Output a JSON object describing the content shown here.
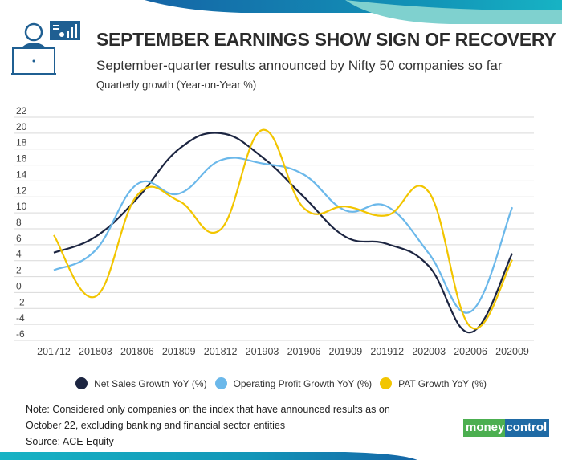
{
  "header": {
    "title": "SEPTEMBER EARNINGS SHOW SIGN OF RECOVERY",
    "subtitle": "September-quarter results announced by Nifty 50 companies so far",
    "unit_label": "Quarterly growth (Year-on-Year %)",
    "icon": "analyst-laptop-icon"
  },
  "chart_data": {
    "type": "line",
    "smooth": true,
    "title": "SEPTEMBER EARNINGS SHOW SIGN OF RECOVERY",
    "ylabel": "Quarterly growth (Year-on-Year %)",
    "xlabel": "",
    "ylim": [
      -6,
      22
    ],
    "yticks": [
      22,
      20,
      18,
      16,
      14,
      12,
      10,
      8,
      6,
      4,
      2,
      0,
      -2,
      -4,
      -6
    ],
    "grid": true,
    "legend": "bottom",
    "categories": [
      "201712",
      "201803",
      "201806",
      "201809",
      "201812",
      "201903",
      "201906",
      "201909",
      "201912",
      "202003",
      "202006",
      "202009"
    ],
    "series": [
      {
        "name": "Net Sales Growth YoY (%)",
        "color": "#1c2541",
        "values": [
          5.0,
          7.0,
          11.8,
          18.0,
          20.0,
          17.0,
          12.0,
          7.0,
          6.1,
          3.3,
          -5.0,
          4.9
        ]
      },
      {
        "name": "Operating Profit Growth YoY (%)",
        "color": "#6bb8ea",
        "values": [
          2.8,
          5.3,
          13.6,
          12.4,
          16.6,
          16.2,
          14.8,
          10.3,
          10.8,
          4.9,
          -2.4,
          10.7
        ]
      },
      {
        "name": "PAT Growth YoY (%)",
        "color": "#f2c500",
        "values": [
          7.2,
          -0.5,
          12.2,
          11.5,
          7.9,
          20.4,
          10.6,
          10.8,
          9.7,
          12.6,
          -4.3,
          4.1
        ]
      }
    ]
  },
  "footer": {
    "note_line1": "Note: Considered only companies on the index that have announced results as on",
    "note_line2": "October 22, excluding banking and financial sector entities",
    "source": "Source: ACE Equity",
    "logo_part1": "money",
    "logo_part2": "control"
  },
  "colors": {
    "band_dark": "#1565a6",
    "band_teal": "#17b3c4",
    "band_light": "#7fd1cf",
    "grid": "#d9d9d9"
  }
}
